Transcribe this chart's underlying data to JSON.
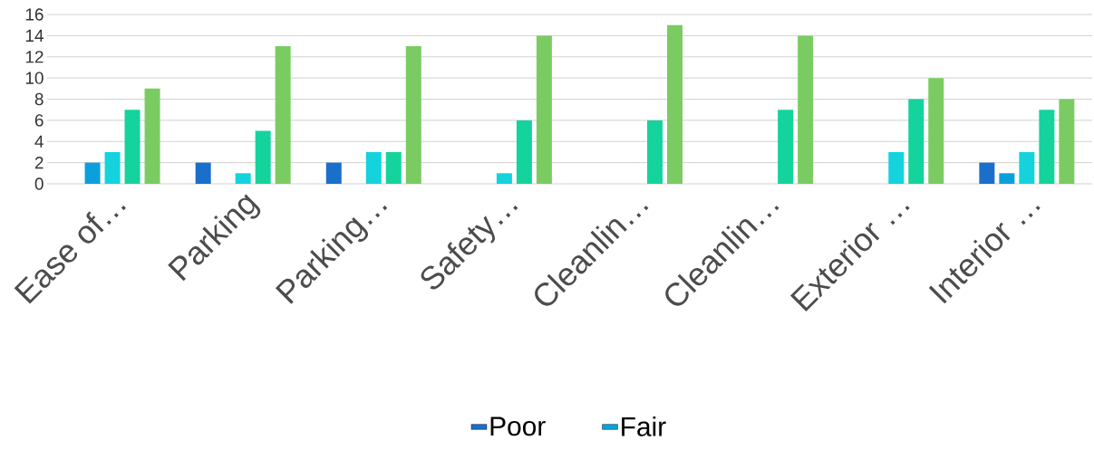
{
  "chart_data": {
    "type": "bar",
    "categories": [
      "Ease of…",
      "Parking",
      "Parking…",
      "Safety…",
      "Cleanlin…",
      "Cleanlin…",
      "Exterior …",
      "Interior …"
    ],
    "series": [
      {
        "name": "Poor",
        "color": "#1a6fca",
        "values": [
          0,
          2,
          2,
          0,
          0,
          0,
          0,
          2
        ]
      },
      {
        "name": "Fair",
        "color": "#0aa0dc",
        "values": [
          2,
          0,
          0,
          0,
          0,
          0,
          0,
          1
        ]
      },
      {
        "color": "#14d3dc",
        "values": [
          3,
          1,
          3,
          1,
          0,
          0,
          3,
          3
        ]
      },
      {
        "color": "#14d39c",
        "values": [
          7,
          5,
          3,
          6,
          6,
          7,
          8,
          7
        ]
      },
      {
        "color": "#7acc62",
        "values": [
          9,
          13,
          13,
          14,
          15,
          14,
          10,
          8
        ]
      }
    ],
    "ylim": [
      0,
      16
    ],
    "yticks": [
      0,
      2,
      4,
      6,
      8,
      10,
      12,
      14,
      16
    ],
    "grid": "y",
    "legend": "bottom"
  }
}
